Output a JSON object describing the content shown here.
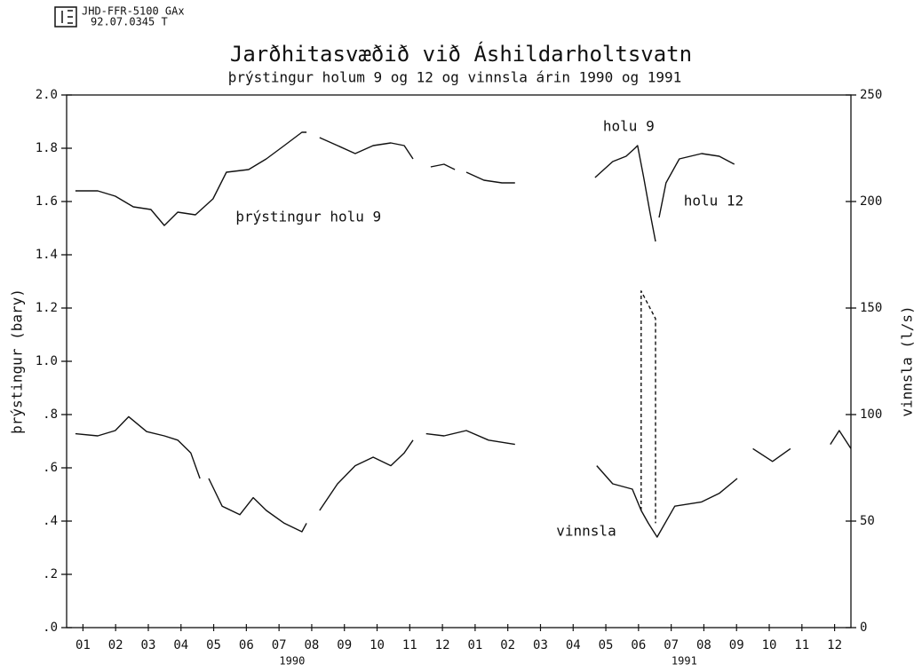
{
  "chart_data": {
    "type": "line",
    "header": [
      "JHD-FFR-5100 GAx",
      "92.07.0345 T"
    ],
    "title": "Jarðhitasvæðið við Áshildarholtsvatn",
    "subtitle": "þrýstingur holum 9 og 12 og vinnsla árin 1990 og 1991",
    "ylabel": "þrýstingur (bary)",
    "y2label": "vinnsla (l/s)",
    "xlim": [
      0,
      24
    ],
    "xticks": [
      {
        "value": 0.5,
        "label": "01"
      },
      {
        "value": 1.5,
        "label": "02"
      },
      {
        "value": 2.5,
        "label": "03"
      },
      {
        "value": 3.5,
        "label": "04"
      },
      {
        "value": 4.5,
        "label": "05"
      },
      {
        "value": 5.5,
        "label": "06"
      },
      {
        "value": 6.5,
        "label": "07"
      },
      {
        "value": 7.5,
        "label": "08"
      },
      {
        "value": 8.5,
        "label": "09"
      },
      {
        "value": 9.5,
        "label": "10"
      },
      {
        "value": 10.5,
        "label": "11"
      },
      {
        "value": 11.5,
        "label": "12"
      },
      {
        "value": 12.5,
        "label": "01"
      },
      {
        "value": 13.5,
        "label": "02"
      },
      {
        "value": 14.5,
        "label": "03"
      },
      {
        "value": 15.5,
        "label": "04"
      },
      {
        "value": 16.5,
        "label": "05"
      },
      {
        "value": 17.5,
        "label": "06"
      },
      {
        "value": 18.5,
        "label": "07"
      },
      {
        "value": 19.5,
        "label": "08"
      },
      {
        "value": 20.5,
        "label": "09"
      },
      {
        "value": 21.5,
        "label": "10"
      },
      {
        "value": 22.5,
        "label": "11"
      },
      {
        "value": 23.5,
        "label": "12"
      }
    ],
    "year_labels": [
      {
        "value": 6.9,
        "label": "1990"
      },
      {
        "value": 18.9,
        "label": "1991"
      }
    ],
    "ylim": [
      0,
      2
    ],
    "yticks": [
      {
        "value": 0,
        "label": ".0"
      },
      {
        "value": 0.2,
        "label": ".2"
      },
      {
        "value": 0.4,
        "label": ".4"
      },
      {
        "value": 0.6,
        "label": ".6"
      },
      {
        "value": 0.8,
        "label": ".8"
      },
      {
        "value": 1,
        "label": "1.0"
      },
      1.2,
      1.4,
      1.6,
      1.8,
      {
        "value": 2,
        "label": "2.0"
      }
    ],
    "y2lim": [
      0,
      250
    ],
    "y2ticks": [
      0,
      50,
      100,
      150,
      200,
      250
    ],
    "series": [
      {
        "color": "#111111",
        "axis": "y",
        "x": [
          0.27,
          0.95,
          1.49,
          2.04,
          2.58,
          2.99,
          3.4,
          3.94,
          4.48,
          4.89,
          5.57,
          6.11,
          6.66,
          7.2,
          7.34,
          null,
          7.74,
          8.29,
          8.83,
          9.38,
          9.92,
          10.33,
          10.6,
          null,
          11.14,
          11.55,
          11.88,
          null,
          12.23,
          12.77,
          13.32,
          13.72,
          null,
          16.17,
          16.71,
          17.12,
          17.39,
          17.47,
          17.66,
          17.85,
          18.02
        ],
        "values": [
          1.64,
          1.64,
          1.62,
          1.58,
          1.57,
          1.51,
          1.56,
          1.55,
          1.61,
          1.71,
          1.72,
          1.76,
          1.81,
          1.86,
          1.86,
          null,
          1.84,
          1.81,
          1.78,
          1.81,
          1.82,
          1.81,
          1.76,
          null,
          1.73,
          1.74,
          1.72,
          null,
          1.71,
          1.68,
          1.67,
          1.67,
          null,
          1.69,
          1.75,
          1.77,
          1.8,
          1.81,
          1.69,
          1.56,
          1.45
        ]
      },
      {
        "color": "#111111",
        "axis": "y",
        "x": [
          18.13,
          18.34,
          18.75,
          19.43,
          19.97,
          20.43
        ],
        "values": [
          1.54,
          1.67,
          1.76,
          1.78,
          1.77,
          1.74
        ]
      },
      {
        "color": "#111111",
        "axis": "y2",
        "x": [
          0.27,
          0.95,
          1.49,
          1.9,
          2.45,
          2.99,
          3.4,
          3.8,
          4.08,
          null,
          4.35,
          4.76,
          5.3,
          5.71,
          6.11,
          6.66,
          7.2,
          7.34,
          null,
          7.74,
          8.29,
          8.83,
          9.38,
          9.92,
          10.33,
          10.6,
          null,
          11.0,
          11.55,
          12.23,
          12.91,
          13.72,
          null,
          16.22,
          16.71,
          17.31,
          17.58,
          17.8,
          18.07,
          18.61,
          19.43,
          19.97,
          20.52,
          null,
          21.0,
          21.6,
          22.15,
          null,
          23.37,
          23.64,
          24.0
        ],
        "values": [
          91,
          90,
          92.5,
          99,
          92,
          90,
          88,
          82,
          70,
          null,
          70,
          57,
          53,
          61,
          55,
          49,
          45,
          49,
          null,
          55,
          67.5,
          76,
          80,
          76,
          82,
          88,
          null,
          91,
          90,
          92.5,
          88,
          86,
          null,
          76,
          67.5,
          65,
          55,
          49,
          42.5,
          57,
          59,
          63,
          70,
          null,
          84,
          78,
          84,
          null,
          86,
          92.5,
          84
        ]
      },
      {
        "color": "#111111",
        "axis": "y2",
        "dash": true,
        "x": [
          17.58,
          17.58,
          18.02,
          18.02
        ],
        "values": [
          55,
          158,
          145,
          49
        ]
      }
    ],
    "annotations": [
      {
        "text": "holu 9",
        "x": 17.2,
        "y": 1.88
      },
      {
        "text": "holu 12",
        "x": 19.8,
        "y": 1.6
      },
      {
        "text": "þrýstingur holu 9",
        "x": 7.4,
        "y": 1.54
      },
      {
        "text": "vinnsla",
        "x": 15.9,
        "y": 0.36
      }
    ]
  }
}
